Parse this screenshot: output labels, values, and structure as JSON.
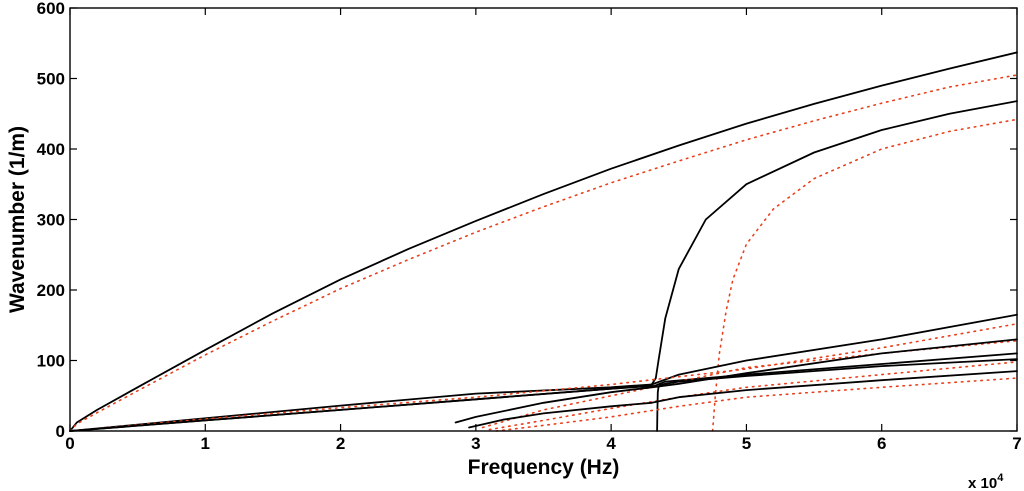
{
  "chart_data": {
    "type": "line",
    "title": "",
    "xlabel": "Frequency (Hz)",
    "ylabel": "Wavenumber (1/m)",
    "x_multiplier_label": "x 10",
    "x_multiplier_exponent": "4",
    "xlim": [
      0,
      7
    ],
    "ylim": [
      0,
      600
    ],
    "xticks": [
      0,
      1,
      2,
      3,
      4,
      5,
      6,
      7
    ],
    "yticks": [
      0,
      100,
      200,
      300,
      400,
      500,
      600
    ],
    "grid": false,
    "legend": "none",
    "series": [
      {
        "style": "solid",
        "color": "#000000",
        "x": [
          0,
          0.05,
          0.2,
          0.5,
          1,
          1.5,
          2,
          2.5,
          3,
          3.5,
          4,
          4.5,
          5,
          5.5,
          6,
          6.5,
          7
        ],
        "y": [
          0,
          12,
          30,
          62,
          115,
          167,
          215,
          258,
          298,
          336,
          372,
          405,
          436,
          464,
          490,
          514,
          537
        ]
      },
      {
        "style": "dotted",
        "color": "#e8401c",
        "x": [
          0,
          0.05,
          0.2,
          0.5,
          1,
          1.5,
          2,
          2.5,
          3,
          3.5,
          4,
          4.5,
          5,
          5.5,
          6,
          6.5,
          7
        ],
        "y": [
          0,
          10,
          26,
          57,
          108,
          156,
          202,
          243,
          282,
          318,
          352,
          383,
          413,
          440,
          465,
          488,
          505
        ]
      },
      {
        "style": "solid",
        "color": "#000000",
        "x": [
          0,
          1,
          2,
          3,
          4,
          4.2,
          4.3,
          4.33,
          4.35,
          4.4,
          4.5,
          4.7,
          5,
          5.5,
          6,
          6.5,
          7
        ],
        "y": [
          0,
          15,
          30,
          45,
          60,
          63,
          66,
          75,
          100,
          160,
          230,
          300,
          350,
          395,
          427,
          450,
          468
        ]
      },
      {
        "style": "dotted",
        "color": "#e8401c",
        "x": [
          4.75,
          4.77,
          4.8,
          4.85,
          4.9,
          5,
          5.2,
          5.5,
          6,
          6.5,
          7
        ],
        "y": [
          0,
          50,
          110,
          170,
          215,
          265,
          315,
          358,
          400,
          425,
          442
        ]
      },
      {
        "style": "solid",
        "color": "#000000",
        "x": [
          0,
          1,
          2,
          3,
          4,
          4.3,
          4.5,
          5,
          6,
          7
        ],
        "y": [
          0,
          18,
          36,
          53,
          62,
          66,
          80,
          100,
          130,
          165
        ]
      },
      {
        "style": "dotted",
        "color": "#e8401c",
        "x": [
          0,
          1,
          2,
          3,
          4,
          5,
          6,
          7
        ],
        "y": [
          0,
          17,
          33,
          48,
          66,
          88,
          118,
          152
        ]
      },
      {
        "style": "solid",
        "color": "#000000",
        "x": [
          0,
          1,
          2,
          3,
          4,
          4.32,
          4.4,
          5,
          6,
          7
        ],
        "y": [
          0,
          15,
          30,
          45,
          60,
          64,
          70,
          80,
          95,
          110
        ]
      },
      {
        "style": "dotted",
        "color": "#e8401c",
        "x": [
          3.05,
          3.5,
          4,
          4.5,
          5,
          6,
          7
        ],
        "y": [
          5,
          30,
          50,
          70,
          90,
          110,
          128
        ]
      },
      {
        "style": "solid",
        "color": "#000000",
        "x": [
          2.85,
          3,
          3.5,
          4,
          4.3,
          4.5,
          5,
          6,
          7
        ],
        "y": [
          12,
          20,
          40,
          55,
          62,
          67,
          82,
          110,
          130
        ]
      },
      {
        "style": "dotted",
        "color": "#e8401c",
        "x": [
          3.1,
          3.5,
          4,
          4.5,
          5,
          6,
          7
        ],
        "y": [
          2,
          15,
          32,
          48,
          62,
          80,
          98
        ]
      },
      {
        "style": "solid",
        "color": "#000000",
        "x": [
          2.95,
          3.2,
          3.5,
          4,
          4.3,
          4.35,
          4.5,
          5,
          6,
          7
        ],
        "y": [
          5,
          16,
          25,
          35,
          40,
          42,
          48,
          58,
          72,
          85
        ]
      },
      {
        "style": "solid",
        "color": "#000000",
        "x": [
          4.34,
          4.342,
          4.345,
          4.35,
          4.36,
          4.4,
          4.5,
          5,
          6,
          7
        ],
        "y": [
          0,
          30,
          55,
          62,
          65,
          67,
          70,
          78,
          92,
          102
        ]
      },
      {
        "style": "dotted",
        "color": "#e8401c",
        "x": [
          3.15,
          3.5,
          4,
          4.5,
          5,
          6,
          7
        ],
        "y": [
          0,
          8,
          20,
          35,
          48,
          62,
          75
        ]
      }
    ]
  }
}
